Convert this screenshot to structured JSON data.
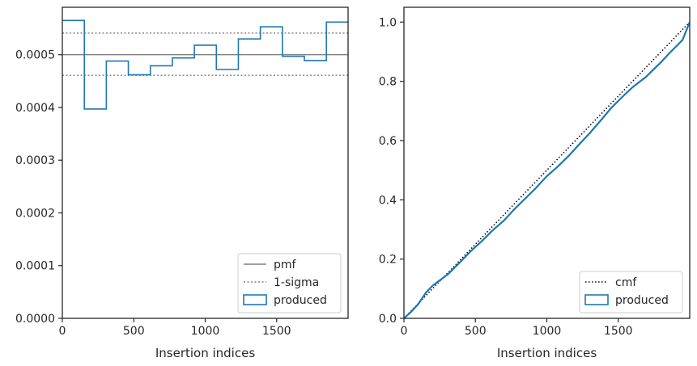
{
  "chart_data": [
    {
      "type": "line",
      "subtype": "step-histogram",
      "xlabel": "Insertion indices",
      "ylabel": "",
      "xlim": [
        0,
        2000
      ],
      "ylim": [
        0,
        0.00059
      ],
      "xticks": [
        0,
        500,
        1000,
        1500
      ],
      "xtick_labels": [
        "0",
        "500",
        "1000",
        "1500"
      ],
      "yticks": [
        0,
        0.0001,
        0.0002,
        0.0003,
        0.0004,
        0.0005
      ],
      "ytick_labels": [
        "0.0000",
        "0.0001",
        "0.0002",
        "0.0003",
        "0.0004",
        "0.0005"
      ],
      "reference_lines": [
        {
          "name": "pmf",
          "y": 0.0005,
          "style": "solid",
          "color": "#808080"
        },
        {
          "name": "1-sigma",
          "y": 0.000541,
          "style": "dotted",
          "color": "#808080"
        },
        {
          "name": "1-sigma",
          "y": 0.000461,
          "style": "dotted",
          "color": "#808080"
        }
      ],
      "series": [
        {
          "name": "produced",
          "color": "#1f77b4",
          "bin_edges": [
            0,
            154,
            308,
            462,
            616,
            770,
            924,
            1078,
            1232,
            1386,
            1540,
            1694,
            1848,
            2000
          ],
          "values": [
            0.000565,
            0.000397,
            0.000488,
            0.000462,
            0.000479,
            0.000494,
            0.000518,
            0.000472,
            0.00053,
            0.000553,
            0.000497,
            0.000489,
            0.000562
          ]
        }
      ],
      "legend": {
        "position": "lower-right",
        "entries": [
          {
            "label": "pmf",
            "kind": "line-solid",
            "color": "#808080"
          },
          {
            "label": "1-sigma",
            "kind": "line-dotted",
            "color": "#808080"
          },
          {
            "label": "produced",
            "kind": "patch",
            "color": "#1f77b4"
          }
        ]
      }
    },
    {
      "type": "line",
      "xlabel": "Insertion indices",
      "ylabel": "",
      "xlim": [
        0,
        2000
      ],
      "ylim": [
        0,
        1.05
      ],
      "xticks": [
        0,
        500,
        1000,
        1500
      ],
      "xtick_labels": [
        "0",
        "500",
        "1000",
        "1500"
      ],
      "yticks": [
        0,
        0.2,
        0.4,
        0.6,
        0.8,
        1.0
      ],
      "ytick_labels": [
        "0.0",
        "0.2",
        "0.4",
        "0.6",
        "0.8",
        "1.0"
      ],
      "series": [
        {
          "name": "cmf",
          "color": "#000000",
          "style": "dotted",
          "x": [
            0,
            2000
          ],
          "y": [
            0,
            1.0
          ]
        },
        {
          "name": "produced",
          "color": "#1f77b4",
          "style": "solid",
          "x": [
            0,
            50,
            100,
            154,
            200,
            250,
            308,
            400,
            462,
            550,
            616,
            700,
            770,
            850,
            924,
            1000,
            1078,
            1150,
            1232,
            1300,
            1386,
            1450,
            1540,
            1600,
            1694,
            1800,
            1848,
            1950,
            2000
          ],
          "y": [
            0,
            0.022,
            0.048,
            0.087,
            0.11,
            0.128,
            0.149,
            0.193,
            0.224,
            0.263,
            0.295,
            0.33,
            0.367,
            0.405,
            0.44,
            0.48,
            0.513,
            0.547,
            0.59,
            0.625,
            0.673,
            0.71,
            0.753,
            0.78,
            0.815,
            0.865,
            0.89,
            0.94,
            1.0
          ]
        }
      ],
      "legend": {
        "position": "lower-right",
        "entries": [
          {
            "label": "cmf",
            "kind": "line-dotted",
            "color": "#000000"
          },
          {
            "label": "produced",
            "kind": "patch",
            "color": "#1f77b4"
          }
        ]
      }
    }
  ]
}
